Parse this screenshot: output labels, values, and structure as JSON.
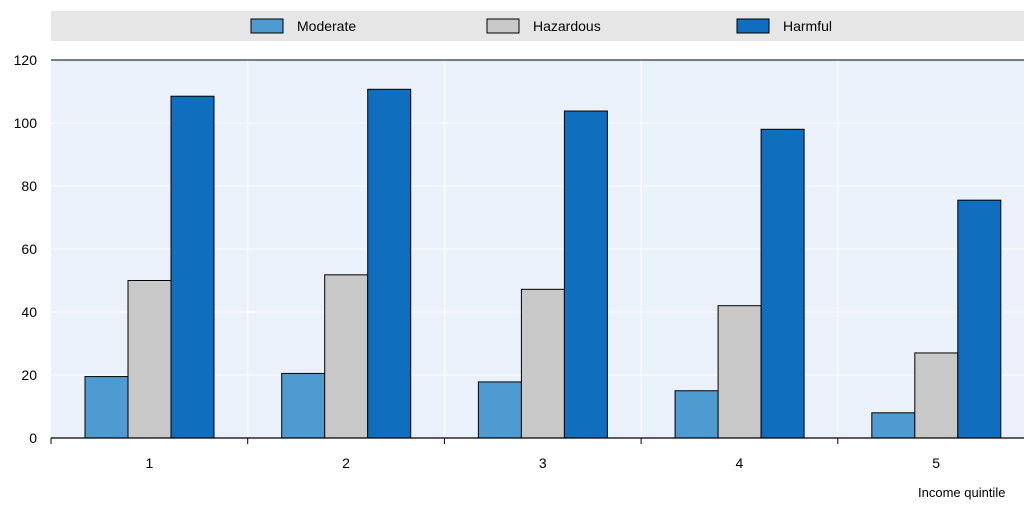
{
  "chart_data": {
    "type": "bar",
    "categories": [
      "1",
      "2",
      "3",
      "4",
      "5"
    ],
    "series": [
      {
        "name": "Moderate",
        "values": [
          19.5,
          20.5,
          17.8,
          15.0,
          8.0
        ]
      },
      {
        "name": "Hazardous",
        "values": [
          50.0,
          51.8,
          47.2,
          42.0,
          27.0
        ]
      },
      {
        "name": "Harmful",
        "values": [
          108.5,
          110.7,
          103.8,
          98.0,
          75.5
        ]
      }
    ],
    "title": "",
    "xlabel": "Income quintile",
    "ylabel": "",
    "ylim": [
      0,
      120
    ],
    "yticks": [
      0,
      20,
      40,
      60,
      80,
      100,
      120
    ],
    "grid": true,
    "legend_position": "top",
    "colors": {
      "Moderate": "#4e9bd2",
      "Hazardous": "#c8c8c8",
      "Harmful": "#0f6ebe",
      "plot_background": "#eaf1fa",
      "legend_background": "#e6e6e6",
      "gridline": "#ffffff",
      "axis": "#000000"
    }
  }
}
